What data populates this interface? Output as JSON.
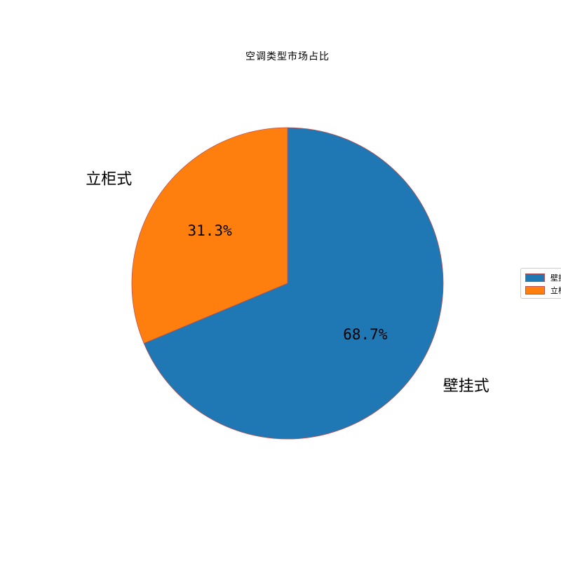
{
  "chart_data": {
    "type": "pie",
    "title": "空调类型市场占比",
    "categories": [
      "壁挂式",
      "立柜式"
    ],
    "values": [
      68.7,
      31.3
    ],
    "percent_labels": [
      "68.7%",
      "31.3%"
    ],
    "colors": [
      "#1f77b4",
      "#ff7f0e"
    ],
    "edge_color": "#c0504d",
    "start_angle_deg": 90,
    "direction": "clockwise",
    "legend": {
      "placement": "right",
      "entries": [
        "壁挂式",
        "立柜式"
      ]
    }
  }
}
